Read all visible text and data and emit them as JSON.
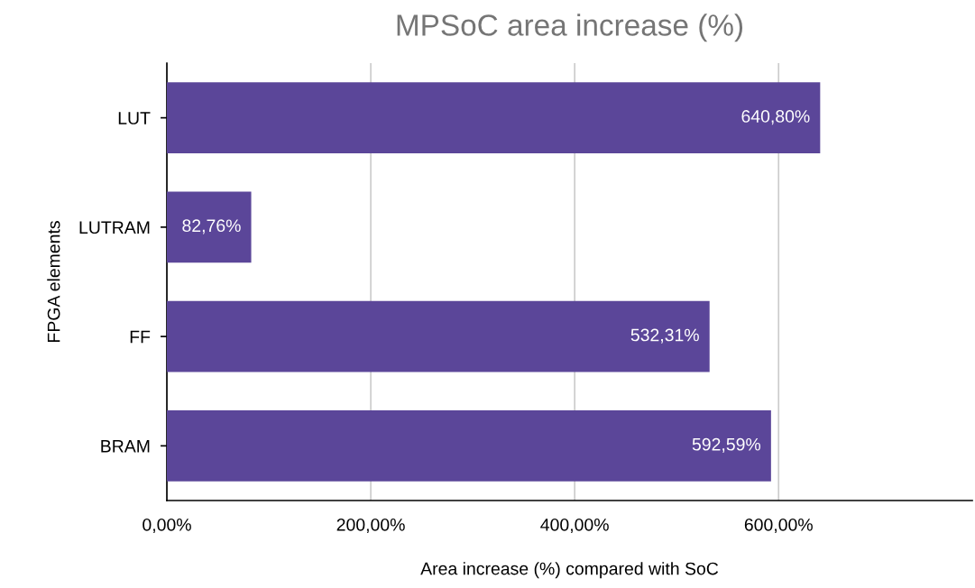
{
  "chart_data": {
    "type": "bar",
    "orientation": "horizontal",
    "title": "MPSoC area increase (%)",
    "xlabel": "Area increase (%) compared with SoC",
    "ylabel": "FPGA elements",
    "categories": [
      "LUT",
      "LUTRAM",
      "FF",
      "BRAM"
    ],
    "values": [
      640.8,
      82.76,
      532.31,
      592.59
    ],
    "value_labels": [
      "640,80%",
      "82,76%",
      "532,31%",
      "592,59%"
    ],
    "color": "#5b4699",
    "xlim": [
      0,
      790
    ],
    "xticks": [
      {
        "value": 0,
        "label": "0,00%"
      },
      {
        "value": 200,
        "label": "200,00%"
      },
      {
        "value": 400,
        "label": "400,00%"
      },
      {
        "value": 600,
        "label": "600,00%"
      }
    ],
    "grid": "x",
    "legend": false
  }
}
